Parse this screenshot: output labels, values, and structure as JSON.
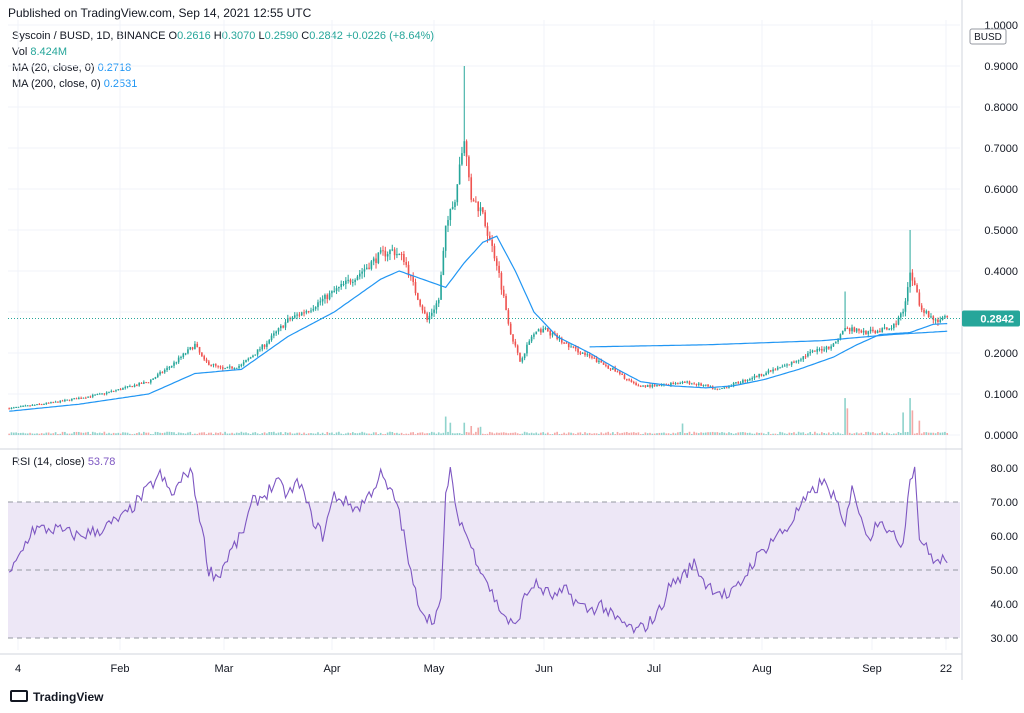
{
  "header": {
    "published": "Published on TradingView.com, Sep 14, 2021 12:55 UTC"
  },
  "legend": {
    "symbol": "Syscoin / BUSD, 1D, BINANCE",
    "o_label": "O",
    "o_value": "0.2616",
    "h_label": "H",
    "h_value": "0.3070",
    "l_label": "L",
    "l_value": "0.2590",
    "c_label": "C",
    "c_value": "0.2842",
    "change": "+0.0226 (+8.64%)",
    "vol_label": "Vol",
    "vol_value": "8.424M",
    "ma20_label": "MA (20, close, 0)",
    "ma20_value": "0.2718",
    "ma200_label": "MA (200, close, 0)",
    "ma200_value": "0.2531",
    "rsi_label": "RSI (14, close)",
    "rsi_value": "53.78"
  },
  "price_axis": {
    "currency": "BUSD",
    "ticks": [
      "1.0000",
      "0.9000",
      "0.8000",
      "0.7000",
      "0.6000",
      "0.5000",
      "0.4000",
      "0.3000",
      "0.2000",
      "0.1000",
      "0.0000"
    ],
    "last_price": "0.2842"
  },
  "rsi_axis": {
    "ticks": [
      "80.00",
      "70.00",
      "60.00",
      "50.00",
      "40.00",
      "30.00"
    ]
  },
  "time_axis": {
    "ticks": [
      "4",
      "Feb",
      "Mar",
      "Apr",
      "May",
      "Jun",
      "Jul",
      "Aug",
      "Sep",
      "22"
    ]
  },
  "footer": {
    "brand": "TradingView"
  },
  "colors": {
    "up": "#26a69a",
    "down": "#ef5350",
    "ma": "#2196f3",
    "rsi": "#7e57c2",
    "rsi_band": "#ede7f6"
  },
  "chart_data": {
    "type": "candlestick",
    "price_ylim": [
      0,
      1.0
    ],
    "rsi_ylim": [
      27,
      83
    ],
    "price_anchors": [
      [
        0,
        0.065
      ],
      [
        20,
        0.08
      ],
      [
        40,
        0.1
      ],
      [
        60,
        0.13
      ],
      [
        70,
        0.17
      ],
      [
        80,
        0.22
      ],
      [
        84,
        0.18
      ],
      [
        92,
        0.16
      ],
      [
        100,
        0.17
      ],
      [
        110,
        0.22
      ],
      [
        120,
        0.28
      ],
      [
        130,
        0.31
      ],
      [
        140,
        0.35
      ],
      [
        150,
        0.39
      ],
      [
        160,
        0.44
      ],
      [
        165,
        0.45
      ],
      [
        170,
        0.43
      ],
      [
        175,
        0.35
      ],
      [
        180,
        0.28
      ],
      [
        185,
        0.33
      ],
      [
        188,
        0.5
      ],
      [
        192,
        0.58
      ],
      [
        196,
        0.72
      ],
      [
        199,
        0.58
      ],
      [
        203,
        0.55
      ],
      [
        210,
        0.42
      ],
      [
        216,
        0.25
      ],
      [
        220,
        0.18
      ],
      [
        225,
        0.24
      ],
      [
        230,
        0.26
      ],
      [
        240,
        0.22
      ],
      [
        250,
        0.19
      ],
      [
        260,
        0.16
      ],
      [
        270,
        0.12
      ],
      [
        280,
        0.12
      ],
      [
        290,
        0.13
      ],
      [
        300,
        0.12
      ],
      [
        305,
        0.11
      ],
      [
        315,
        0.13
      ],
      [
        325,
        0.15
      ],
      [
        335,
        0.17
      ],
      [
        345,
        0.2
      ],
      [
        355,
        0.22
      ],
      [
        360,
        0.26
      ],
      [
        370,
        0.25
      ],
      [
        380,
        0.26
      ],
      [
        385,
        0.3
      ],
      [
        388,
        0.4
      ],
      [
        392,
        0.32
      ],
      [
        396,
        0.29
      ],
      [
        400,
        0.28
      ],
      [
        404,
        0.2842
      ]
    ],
    "ma20_anchors": [
      [
        0,
        0.058
      ],
      [
        30,
        0.075
      ],
      [
        60,
        0.1
      ],
      [
        80,
        0.15
      ],
      [
        100,
        0.16
      ],
      [
        120,
        0.24
      ],
      [
        140,
        0.3
      ],
      [
        160,
        0.38
      ],
      [
        168,
        0.4
      ],
      [
        178,
        0.38
      ],
      [
        188,
        0.36
      ],
      [
        196,
        0.42
      ],
      [
        204,
        0.47
      ],
      [
        210,
        0.485
      ],
      [
        218,
        0.4
      ],
      [
        226,
        0.3
      ],
      [
        236,
        0.24
      ],
      [
        250,
        0.2
      ],
      [
        262,
        0.16
      ],
      [
        272,
        0.13
      ],
      [
        285,
        0.12
      ],
      [
        300,
        0.115
      ],
      [
        312,
        0.12
      ],
      [
        325,
        0.135
      ],
      [
        340,
        0.16
      ],
      [
        355,
        0.19
      ],
      [
        365,
        0.22
      ],
      [
        375,
        0.245
      ],
      [
        388,
        0.25
      ],
      [
        398,
        0.27
      ],
      [
        404,
        0.2718
      ]
    ],
    "ma200_anchors": [
      [
        250,
        0.215
      ],
      [
        300,
        0.22
      ],
      [
        350,
        0.23
      ],
      [
        380,
        0.245
      ],
      [
        404,
        0.2531
      ]
    ],
    "volume_spikes": [
      [
        188,
        0.045
      ],
      [
        190,
        0.03
      ],
      [
        196,
        0.03
      ],
      [
        199,
        0.022
      ],
      [
        202,
        0.018
      ],
      [
        203,
        0.02
      ],
      [
        290,
        0.028
      ],
      [
        360,
        0.09
      ],
      [
        361,
        0.065
      ],
      [
        385,
        0.055
      ],
      [
        388,
        0.09
      ],
      [
        389,
        0.06
      ],
      [
        392,
        0.035
      ]
    ],
    "rsi_anchors": [
      [
        0,
        48
      ],
      [
        5,
        55
      ],
      [
        10,
        62
      ],
      [
        20,
        62
      ],
      [
        30,
        60
      ],
      [
        40,
        62
      ],
      [
        50,
        66
      ],
      [
        60,
        74
      ],
      [
        65,
        78
      ],
      [
        70,
        72
      ],
      [
        78,
        80
      ],
      [
        82,
        66
      ],
      [
        86,
        50
      ],
      [
        90,
        48
      ],
      [
        95,
        55
      ],
      [
        100,
        60
      ],
      [
        105,
        70
      ],
      [
        110,
        72
      ],
      [
        115,
        76
      ],
      [
        120,
        72
      ],
      [
        125,
        76
      ],
      [
        130,
        66
      ],
      [
        135,
        60
      ],
      [
        140,
        72
      ],
      [
        145,
        70
      ],
      [
        150,
        68
      ],
      [
        155,
        72
      ],
      [
        160,
        78
      ],
      [
        163,
        74
      ],
      [
        167,
        70
      ],
      [
        170,
        60
      ],
      [
        174,
        45
      ],
      [
        178,
        38
      ],
      [
        182,
        35
      ],
      [
        186,
        40
      ],
      [
        188,
        72
      ],
      [
        190,
        80
      ],
      [
        192,
        68
      ],
      [
        196,
        62
      ],
      [
        200,
        55
      ],
      [
        205,
        48
      ],
      [
        210,
        40
      ],
      [
        215,
        35
      ],
      [
        218,
        33
      ],
      [
        222,
        42
      ],
      [
        226,
        46
      ],
      [
        230,
        44
      ],
      [
        235,
        42
      ],
      [
        240,
        44
      ],
      [
        245,
        40
      ],
      [
        250,
        38
      ],
      [
        255,
        40
      ],
      [
        260,
        36
      ],
      [
        265,
        34
      ],
      [
        270,
        32
      ],
      [
        275,
        34
      ],
      [
        280,
        38
      ],
      [
        285,
        46
      ],
      [
        290,
        48
      ],
      [
        295,
        52
      ],
      [
        300,
        46
      ],
      [
        305,
        44
      ],
      [
        310,
        42
      ],
      [
        315,
        46
      ],
      [
        320,
        52
      ],
      [
        325,
        56
      ],
      [
        330,
        60
      ],
      [
        335,
        62
      ],
      [
        340,
        68
      ],
      [
        345,
        72
      ],
      [
        350,
        76
      ],
      [
        355,
        72
      ],
      [
        360,
        62
      ],
      [
        363,
        76
      ],
      [
        367,
        64
      ],
      [
        371,
        60
      ],
      [
        375,
        66
      ],
      [
        380,
        60
      ],
      [
        385,
        58
      ],
      [
        388,
        78
      ],
      [
        390,
        80
      ],
      [
        392,
        60
      ],
      [
        396,
        55
      ],
      [
        400,
        52
      ],
      [
        404,
        53.78
      ]
    ]
  }
}
